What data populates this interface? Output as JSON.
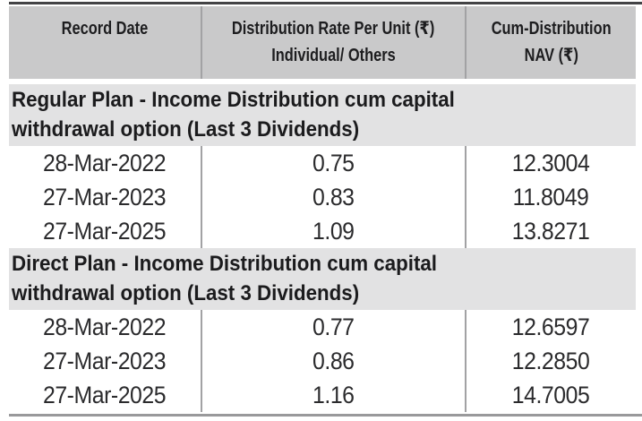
{
  "table": {
    "header": {
      "record_date": "Record Date",
      "rate_line1": "Distribution Rate Per Unit (₹)",
      "rate_line2": "Individual/ Others",
      "nav_line1": "Cum-Distribution",
      "nav_line2": "NAV (₹)"
    },
    "sections": [
      {
        "title_line1": "Regular Plan - Income Distribution cum capital",
        "title_line2": "withdrawal option (Last 3 Dividends)",
        "rows": [
          {
            "record_date": "28-Mar-2022",
            "distribution_rate": "0.75",
            "cum_distribution_nav": "12.3004"
          },
          {
            "record_date": "27-Mar-2023",
            "distribution_rate": "0.83",
            "cum_distribution_nav": "11.8049"
          },
          {
            "record_date": "27-Mar-2025",
            "distribution_rate": "1.09",
            "cum_distribution_nav": "13.8271"
          }
        ]
      },
      {
        "title_line1": "Direct Plan - Income Distribution cum capital",
        "title_line2": "withdrawal option (Last 3 Dividends)",
        "rows": [
          {
            "record_date": "28-Mar-2022",
            "distribution_rate": "0.77",
            "cum_distribution_nav": "12.6597"
          },
          {
            "record_date": "27-Mar-2023",
            "distribution_rate": "0.86",
            "cum_distribution_nav": "12.2850"
          },
          {
            "record_date": "27-Mar-2025",
            "distribution_rate": "1.16",
            "cum_distribution_nav": "14.7005"
          }
        ]
      }
    ]
  },
  "colors": {
    "header_bg": "#c9c9ca",
    "section_bg": "#e2e2e3",
    "divider": "#a2a2a4",
    "top_border": "#434345",
    "bottom_border": "#99999b",
    "text": "#1d1d1f"
  }
}
